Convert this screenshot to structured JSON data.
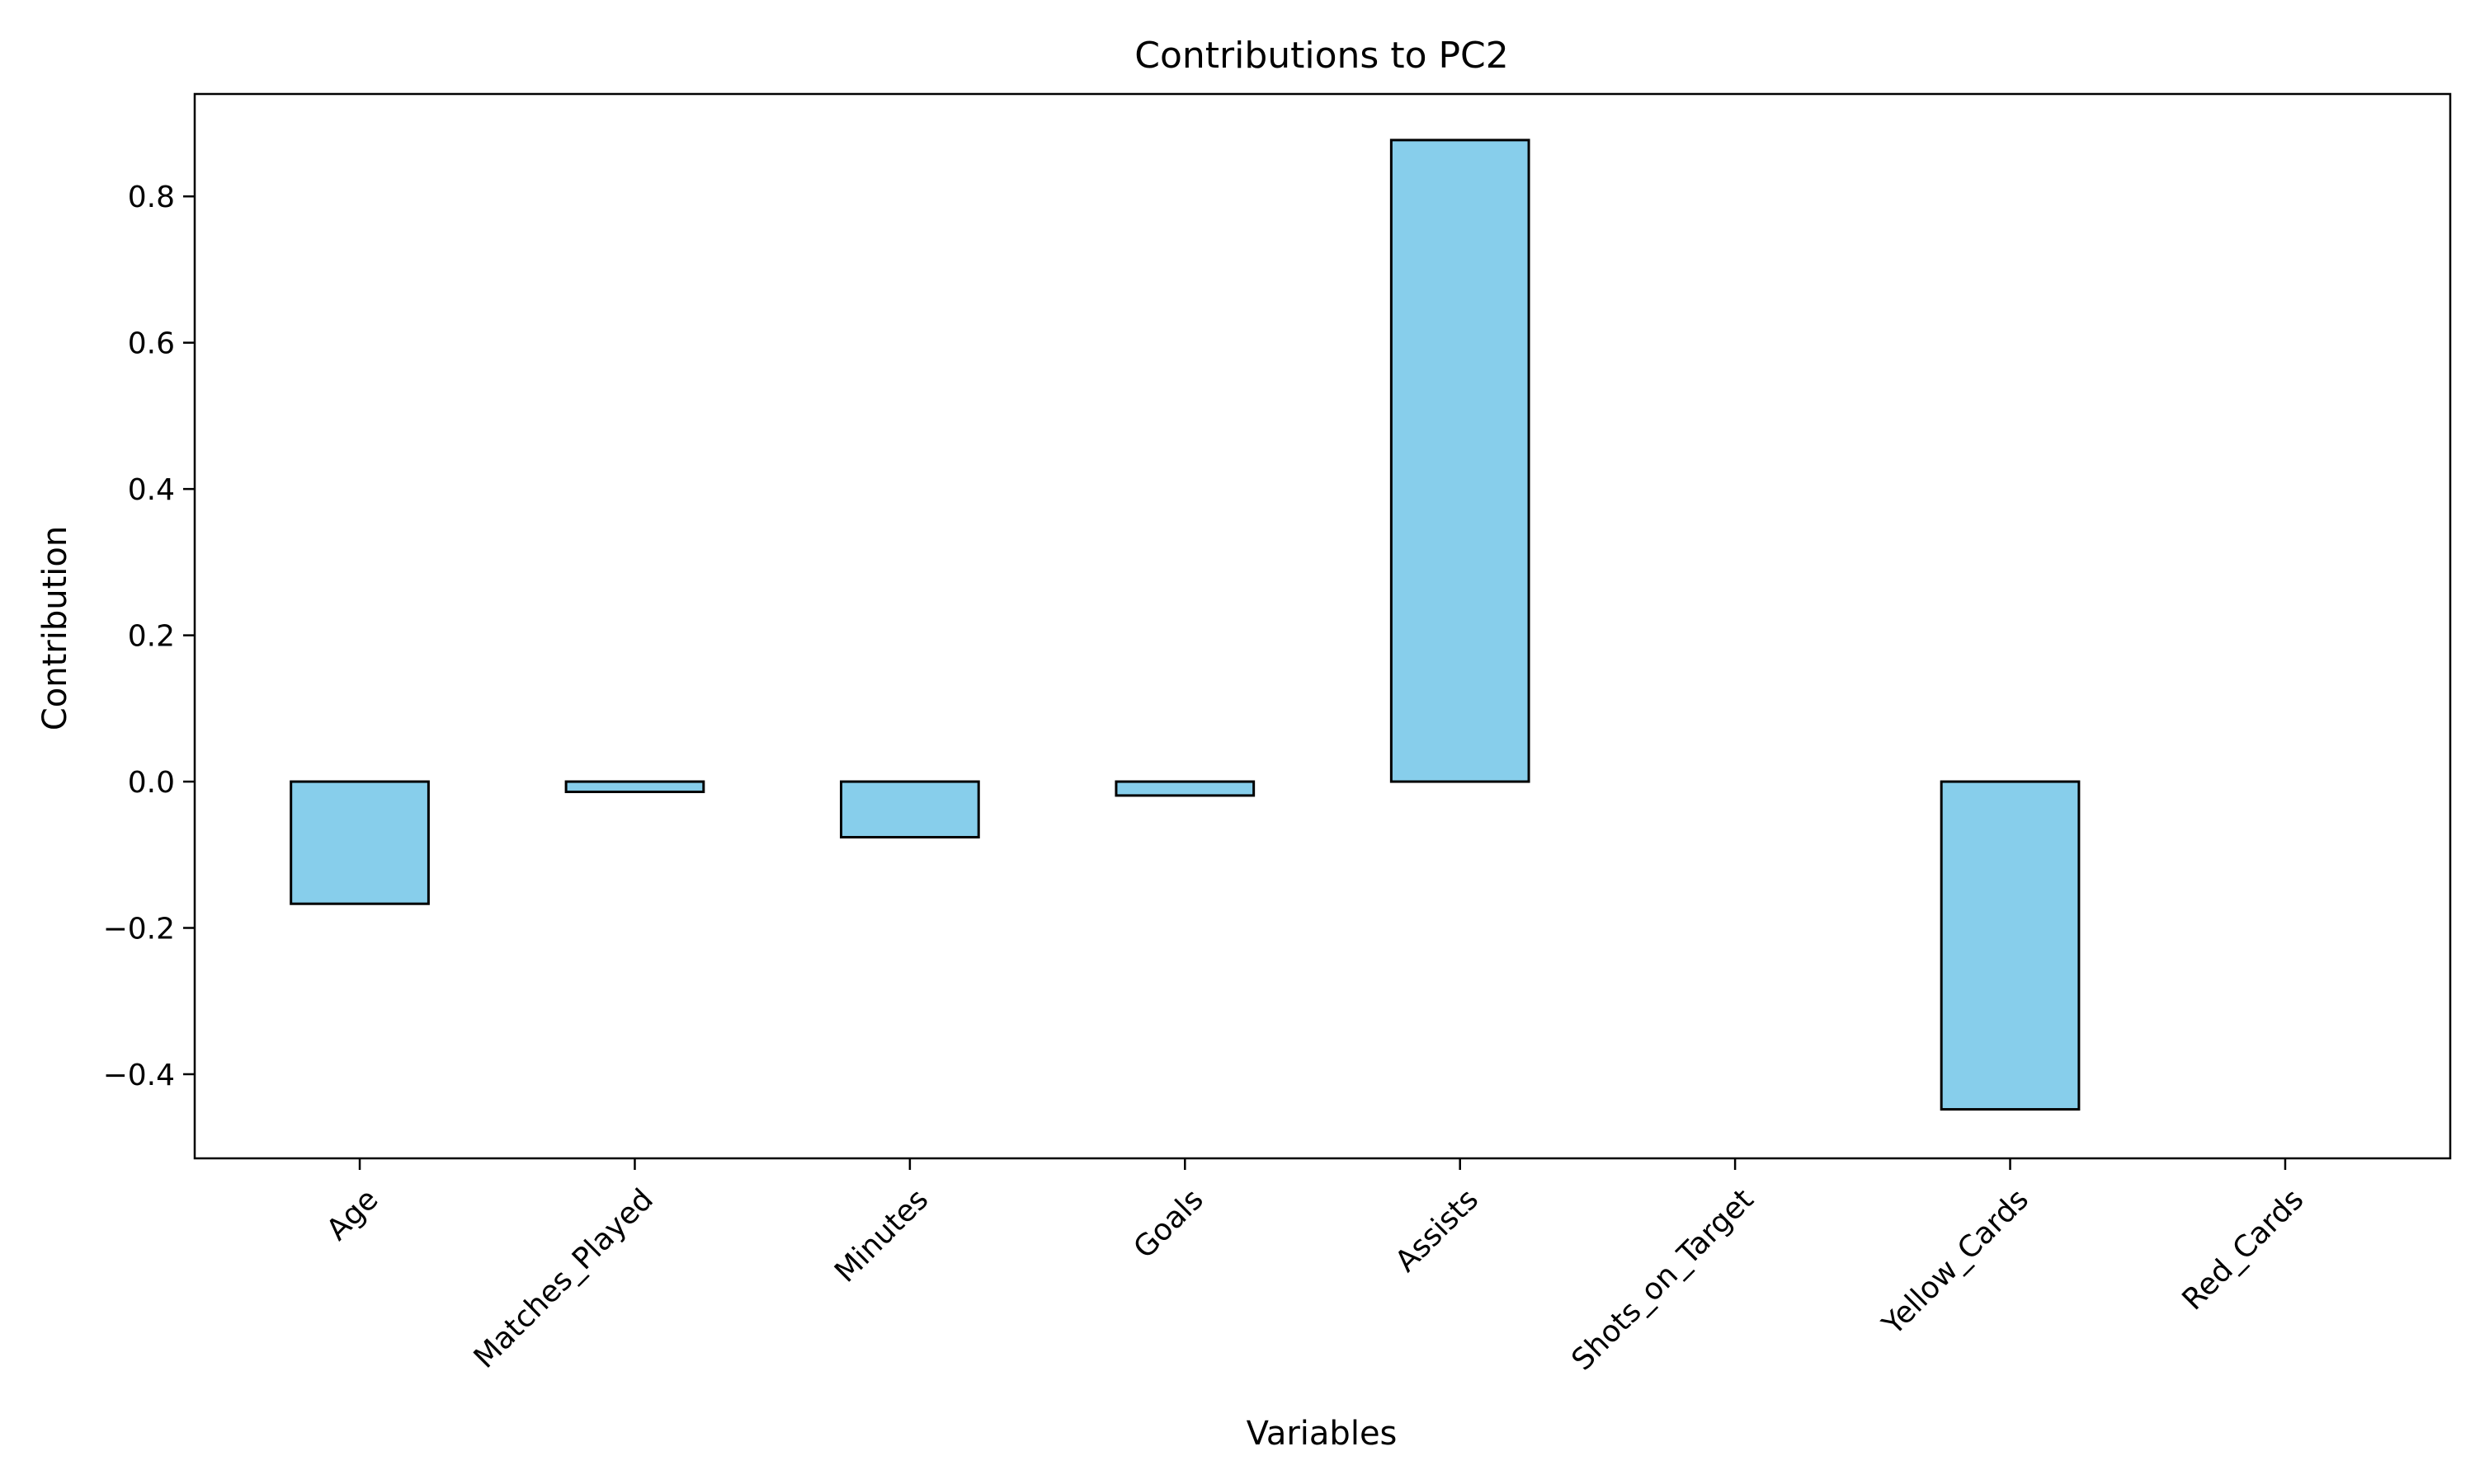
{
  "chart_data": {
    "type": "bar",
    "title": "Contributions to PC2",
    "xlabel": "Variables",
    "ylabel": "Contribution",
    "categories": [
      "Age",
      "Matches_Played",
      "Minutes",
      "Goals",
      "Assists",
      "Shots_on_Target",
      "Yellow_Cards",
      "Red_Cards"
    ],
    "values": [
      -0.167,
      -0.014,
      -0.076,
      -0.019,
      0.877,
      0.0,
      -0.448,
      0.0
    ],
    "ylim": [
      -0.515,
      0.94
    ],
    "yticks": [
      -0.4,
      -0.2,
      0.0,
      0.2,
      0.4,
      0.6,
      0.8
    ],
    "ytick_labels": [
      "−0.4",
      "−0.2",
      "0.0",
      "0.2",
      "0.4",
      "0.6",
      "0.8"
    ],
    "grid": false,
    "legend": "none",
    "bar_color": "#87ceeb",
    "edge_color": "#000000"
  }
}
